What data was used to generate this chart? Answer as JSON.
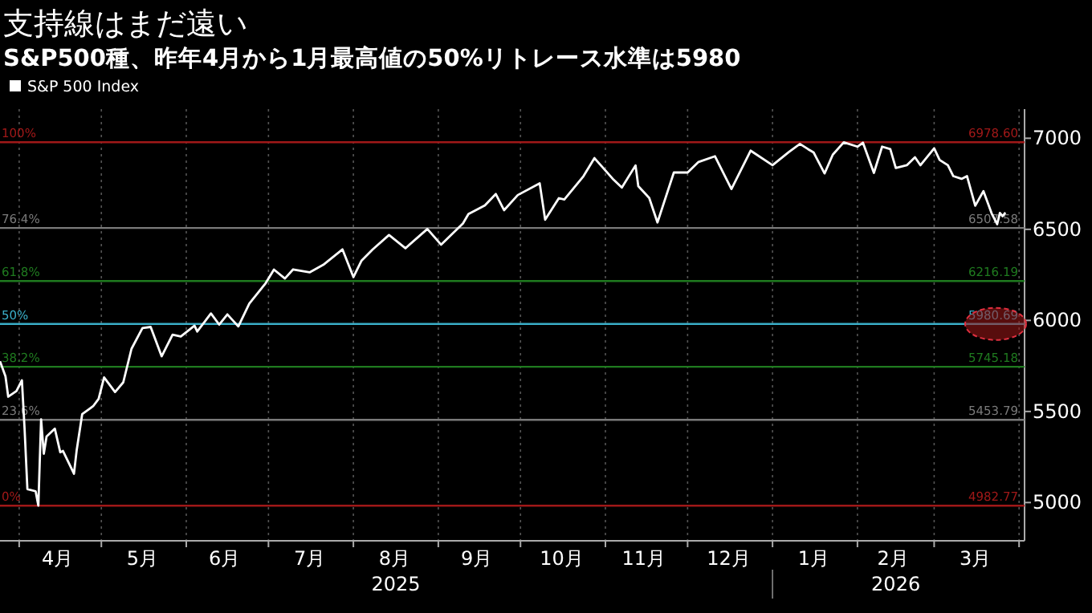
{
  "chart_data": {
    "type": "line",
    "title": "支持線はまだ遠い",
    "subtitle": "S&P500種、昨年4月から1月最高値の50%リトレース水準は5980",
    "legend": "top left",
    "grid": "x",
    "xlim": [
      "2025-03-25",
      "2026-04-03"
    ],
    "ylim": [
      4790,
      7160
    ],
    "yticks": [
      5000,
      5500,
      6000,
      6500,
      7000
    ],
    "xticks": [
      {
        "value": "2025-04-01",
        "label": null
      },
      {
        "value": "2025-04-15",
        "label": "4月"
      },
      {
        "value": "2025-05-01",
        "label": null
      },
      {
        "value": "2025-05-16",
        "label": "5月"
      },
      {
        "value": "2025-06-01",
        "label": null
      },
      {
        "value": "2025-06-15",
        "label": "6月"
      },
      {
        "value": "2025-07-01",
        "label": null
      },
      {
        "value": "2025-07-16",
        "label": "7月"
      },
      {
        "value": "2025-08-01",
        "label": null
      },
      {
        "value": "2025-08-16",
        "label": "8月"
      },
      {
        "value": "2025-09-01",
        "label": null
      },
      {
        "value": "2025-09-15",
        "label": "9月"
      },
      {
        "value": "2025-10-01",
        "label": null
      },
      {
        "value": "2025-10-16",
        "label": "10月"
      },
      {
        "value": "2025-11-01",
        "label": null
      },
      {
        "value": "2025-11-15",
        "label": "11月"
      },
      {
        "value": "2025-12-01",
        "label": null
      },
      {
        "value": "2025-12-16",
        "label": "12月"
      },
      {
        "value": "2026-01-01",
        "label": null
      },
      {
        "value": "2026-01-16",
        "label": "1月"
      },
      {
        "value": "2026-02-01",
        "label": null
      },
      {
        "value": "2026-02-14",
        "label": "2月"
      },
      {
        "value": "2026-03-01",
        "label": null
      },
      {
        "value": "2026-03-16",
        "label": "3月"
      },
      {
        "value": "2026-04-01",
        "label": null
      }
    ],
    "annotations": [
      "2025",
      "2026",
      {
        "text": "100%",
        "x": "2025-03-25",
        "y": 6978.6
      },
      {
        "text": "76.4%",
        "x": "2025-03-25",
        "y": 6507.58
      },
      {
        "text": "61.8%",
        "x": "2025-03-25",
        "y": 6216.19
      },
      {
        "text": "50%",
        "x": "2025-03-25",
        "y": 5980.69
      },
      {
        "text": "38.2%",
        "x": "2025-03-25",
        "y": 5745.18
      },
      {
        "text": "23.6%",
        "x": "2025-03-25",
        "y": 5453.79
      },
      {
        "text": "0%",
        "x": "2025-03-25",
        "y": 4982.77
      }
    ],
    "ref_lines": [
      {
        "axis": "y",
        "value": 6978.6,
        "label": "6978.60",
        "color": "#a01818"
      },
      {
        "axis": "y",
        "value": 6507.58,
        "label": "6507.58",
        "color": "#7a7a7a"
      },
      {
        "axis": "y",
        "value": 6216.19,
        "label": "6216.19",
        "color": "#1f7a1f"
      },
      {
        "axis": "y",
        "value": 5980.69,
        "label": "5980.69",
        "color": "#3aaec8"
      },
      {
        "axis": "y",
        "value": 5745.18,
        "label": "5745.18",
        "color": "#1f7a1f"
      },
      {
        "axis": "y",
        "value": 5453.79,
        "label": "5453.79",
        "color": "#7a7a7a"
      },
      {
        "axis": "y",
        "value": 4982.77,
        "label": "4982.77",
        "color": "#a01818"
      }
    ],
    "series": [
      {
        "name": "S&P 500 Index",
        "color": "#ffffff",
        "x": [
          "2025-03-25",
          "2025-03-27",
          "2025-03-28",
          "2025-03-31",
          "2025-04-02",
          "2025-04-03",
          "2025-04-04",
          "2025-04-07",
          "2025-04-08",
          "2025-04-09",
          "2025-04-10",
          "2025-04-11",
          "2025-04-14",
          "2025-04-16",
          "2025-04-17",
          "2025-04-21",
          "2025-04-22",
          "2025-04-24",
          "2025-04-28",
          "2025-04-30",
          "2025-05-02",
          "2025-05-06",
          "2025-05-09",
          "2025-05-12",
          "2025-05-16",
          "2025-05-19",
          "2025-05-23",
          "2025-05-27",
          "2025-05-30",
          "2025-06-04",
          "2025-06-05",
          "2025-06-10",
          "2025-06-13",
          "2025-06-16",
          "2025-06-20",
          "2025-06-24",
          "2025-06-30",
          "2025-07-03",
          "2025-07-07",
          "2025-07-10",
          "2025-07-16",
          "2025-07-21",
          "2025-07-28",
          "2025-08-01",
          "2025-08-04",
          "2025-08-08",
          "2025-08-14",
          "2025-08-20",
          "2025-08-28",
          "2025-09-02",
          "2025-09-10",
          "2025-09-12",
          "2025-09-18",
          "2025-09-22",
          "2025-09-25",
          "2025-09-30",
          "2025-10-08",
          "2025-10-10",
          "2025-10-15",
          "2025-10-17",
          "2025-10-24",
          "2025-10-28",
          "2025-10-31",
          "2025-11-04",
          "2025-11-07",
          "2025-11-12",
          "2025-11-13",
          "2025-11-17",
          "2025-11-20",
          "2025-11-26",
          "2025-12-01",
          "2025-12-05",
          "2025-12-11",
          "2025-12-17",
          "2025-12-24",
          "2026-01-01",
          "2026-01-07",
          "2026-01-11",
          "2026-01-14",
          "2026-01-16",
          "2026-01-20",
          "2026-01-23",
          "2026-01-27",
          "2026-02-01",
          "2026-02-03",
          "2026-02-07",
          "2026-02-10",
          "2026-02-13",
          "2026-02-15",
          "2026-02-19",
          "2026-02-22",
          "2026-02-24",
          "2026-03-01",
          "2026-03-03",
          "2026-03-06",
          "2026-03-08",
          "2026-03-11",
          "2026-03-13",
          "2026-03-16",
          "2026-03-19",
          "2026-03-22",
          "2026-03-24",
          "2026-03-25",
          "2026-03-26",
          "2026-03-27"
        ],
        "values": [
          5776,
          5693,
          5581,
          5612,
          5671,
          5397,
          5074,
          5062,
          4983,
          5457,
          5268,
          5363,
          5406,
          5276,
          5283,
          5158,
          5288,
          5485,
          5529,
          5569,
          5687,
          5607,
          5660,
          5844,
          5958,
          5964,
          5803,
          5922,
          5912,
          5971,
          5939,
          6038,
          5977,
          6033,
          5967,
          6092,
          6205,
          6279,
          6230,
          6280,
          6264,
          6305,
          6390,
          6238,
          6329,
          6389,
          6469,
          6396,
          6502,
          6416,
          6532,
          6584,
          6631,
          6694,
          6605,
          6688,
          6753,
          6553,
          6671,
          6664,
          6792,
          6891,
          6840,
          6772,
          6729,
          6851,
          6737,
          6672,
          6538,
          6813,
          6812,
          6870,
          6901,
          6721,
          6932,
          6852,
          6925,
          6969,
          6940,
          6922,
          6807,
          6910,
          6978,
          6954,
          6976,
          6810,
          6954,
          6940,
          6837,
          6852,
          6896,
          6852,
          6945,
          6881,
          6852,
          6792,
          6777,
          6792,
          6630,
          6710,
          6587,
          6528,
          6590,
          6572,
          6592
        ]
      }
    ]
  }
}
